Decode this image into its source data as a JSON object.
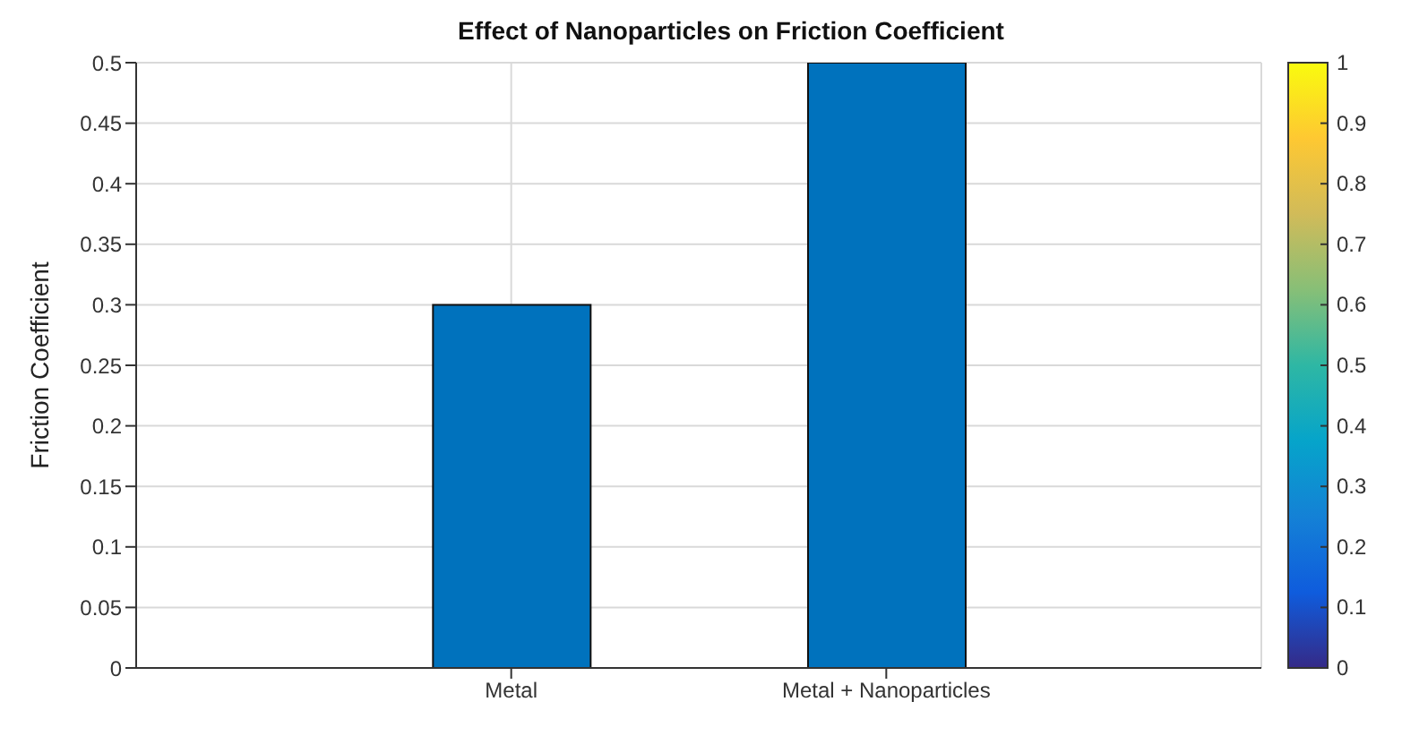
{
  "chart_data": {
    "type": "bar",
    "title": "Effect of Nanoparticles on Friction Coefficient",
    "ylabel": "Friction Coefficient",
    "categories": [
      "Metal",
      "Metal + Nanoparticles"
    ],
    "values": [
      0.3,
      0.5
    ],
    "color": "#0072bd",
    "ylim": [
      0,
      0.5
    ],
    "yticks": [
      0,
      0.05,
      0.1,
      0.15,
      0.2,
      0.25,
      0.3,
      0.35,
      0.4,
      0.45,
      0.5
    ],
    "grid": true,
    "clim": [
      0,
      1
    ],
    "cticks": [
      0,
      0.1,
      0.2,
      0.3,
      0.4,
      0.5,
      0.6,
      0.7,
      0.8,
      0.9,
      1
    ]
  }
}
